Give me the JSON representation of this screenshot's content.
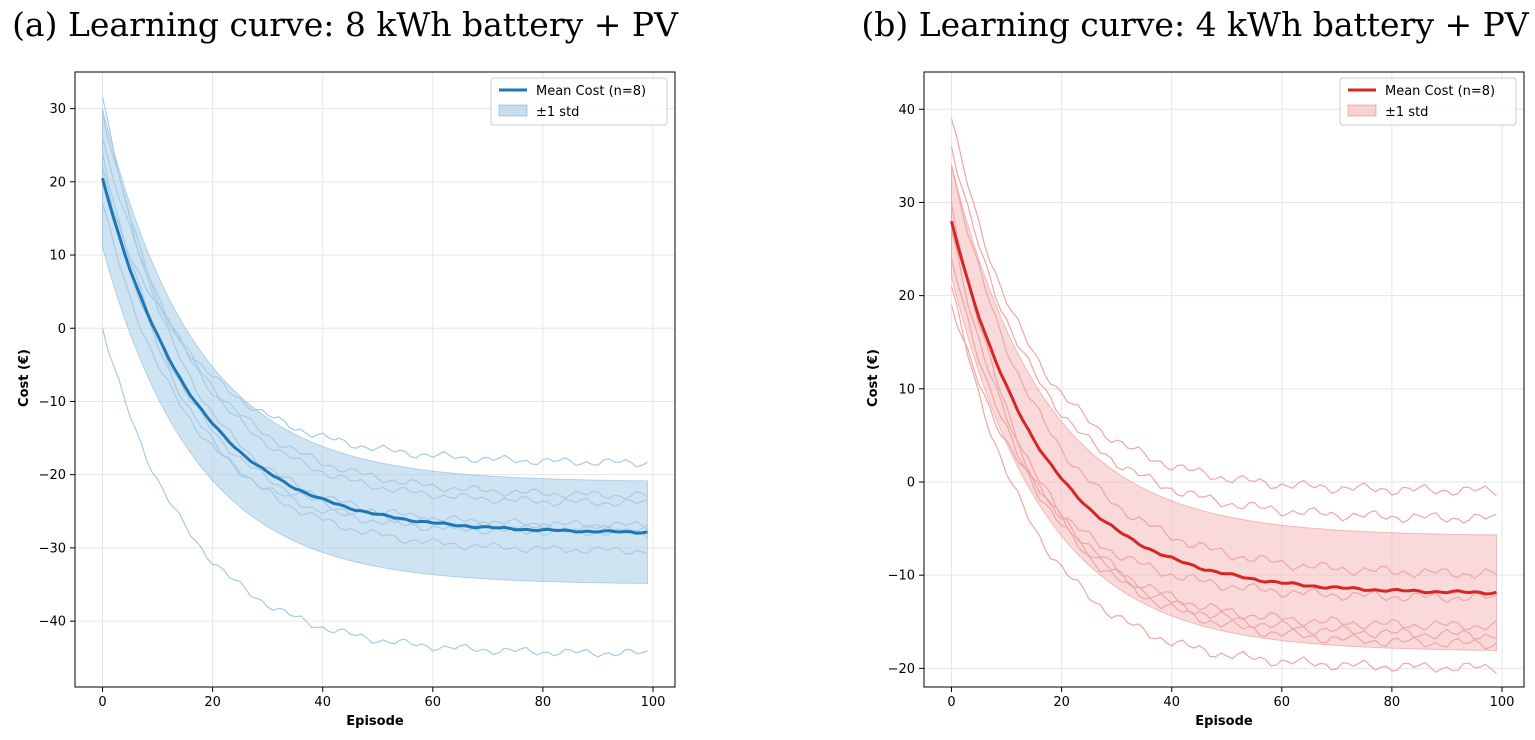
{
  "chart_data": [
    {
      "type": "line",
      "title": "(a) Learning curve: 8 kWh battery + PV",
      "xlabel": "Episode",
      "ylabel": "Cost (€)",
      "xlim": [
        -5,
        104
      ],
      "ylim": [
        -49,
        35
      ],
      "xticks": [
        0,
        20,
        40,
        60,
        80,
        100
      ],
      "yticks": [
        30,
        20,
        10,
        0,
        -10,
        -20,
        -30,
        -40
      ],
      "grid": true,
      "legend_position": "top-right",
      "colors": {
        "mean": "#1f77b4",
        "band": "#9ec9e6",
        "runs": "#a7cbe6"
      },
      "legend": {
        "mean_label": "Mean Cost (n=8)",
        "band_label": "±1 std"
      },
      "mean": {
        "start": 20.5,
        "end": -28,
        "tau": 17
      },
      "std": {
        "start": 9.5,
        "end": 7
      },
      "runs": [
        {
          "start": 31.5,
          "end": -27
        },
        {
          "start": 29.5,
          "end": -24
        },
        {
          "start": 26.0,
          "end": -23
        },
        {
          "start": 24.0,
          "end": -27.5
        },
        {
          "start": 22.0,
          "end": -30.5
        },
        {
          "start": 20.0,
          "end": -18.5
        },
        {
          "start": 17.0,
          "end": -28
        },
        {
          "start": 0.0,
          "end": -44.5
        }
      ],
      "x": {
        "from": 0,
        "to": 99
      }
    },
    {
      "type": "line",
      "title": "(b) Learning curve: 4 kWh battery + PV",
      "xlabel": "Episode",
      "ylabel": "Cost (€)",
      "xlim": [
        -5,
        104
      ],
      "ylim": [
        -22,
        44
      ],
      "xticks": [
        0,
        20,
        40,
        60,
        80,
        100
      ],
      "yticks": [
        40,
        30,
        20,
        10,
        0,
        -10,
        -20
      ],
      "grid": true,
      "legend_position": "top-right",
      "colors": {
        "mean": "#d62728",
        "band": "#f3b4b5",
        "runs": "#eea6a6"
      },
      "legend": {
        "mean_label": "Mean Cost (n=8)",
        "band_label": "±1 std"
      },
      "mean": {
        "start": 28.0,
        "end": -12,
        "tau": 17
      },
      "std": {
        "start": 6.0,
        "end": 6.2
      },
      "runs": [
        {
          "start": 39.0,
          "end": -1
        },
        {
          "start": 36.0,
          "end": -4
        },
        {
          "start": 34.0,
          "end": -10
        },
        {
          "start": 30.0,
          "end": -15.5
        },
        {
          "start": 27.0,
          "end": -16.5
        },
        {
          "start": 24.0,
          "end": -17.5
        },
        {
          "start": 21.0,
          "end": -20
        },
        {
          "start": 19.0,
          "end": -12.5
        }
      ],
      "x": {
        "from": 0,
        "to": 99
      }
    }
  ]
}
